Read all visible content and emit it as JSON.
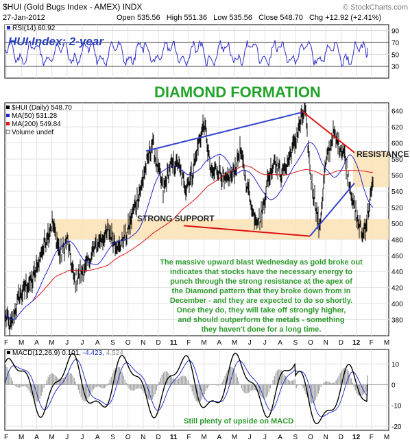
{
  "header": {
    "symbol_line": "$HUI (Gold Bugs Index - AMEX) INDX",
    "copyright": "© StockCharts.com",
    "date": "27-Jan-2012",
    "open_label": "Open",
    "open_value": "535.56",
    "high_label": "High",
    "high_value": "551.36",
    "low_label": "Low",
    "low_value": "535.56",
    "close_label": "Close",
    "close_value": "548.70",
    "chg_label": "Chg",
    "chg_value": "+12.92 (+2.41%)"
  },
  "chart_data": [
    {
      "type": "line",
      "panel": "rsi",
      "legend": "RSI(14) 60.92",
      "title": "HUI Index: 2-year",
      "ylim": [
        10,
        100
      ],
      "y_ticks": [
        30,
        50,
        70,
        90
      ],
      "reference_lines": [
        30,
        70
      ],
      "series": [
        {
          "name": "RSI(14)",
          "color": "#2b2bcc"
        }
      ],
      "last_value": 60.92
    },
    {
      "type": "line",
      "panel": "price",
      "title": "DIAMOND FORMATION",
      "legend": [
        "$HUI (Daily) 548.70",
        "MA(50) 531.28",
        "MA(200) 549.84",
        "Volume undef"
      ],
      "ylim": [
        360,
        650
      ],
      "y_ticks": [
        380,
        400,
        420,
        440,
        460,
        480,
        500,
        520,
        540,
        560,
        580,
        600,
        620,
        640
      ],
      "series": [
        {
          "name": "$HUI (Daily)",
          "color": "#000000",
          "last": 548.7
        },
        {
          "name": "MA(50)",
          "color": "#2222cc",
          "last": 531.28
        },
        {
          "name": "MA(200)",
          "color": "#dd1111",
          "last": 549.84
        }
      ],
      "support_zone": [
        480,
        505
      ],
      "resistance_zone": [
        545,
        590
      ],
      "support_label": "STRONG SUPPORT",
      "resistance_label": "RESISTANCE",
      "diamond_upper_line": [
        [
          590,
          640
        ],
        [
          638,
          640
        ]
      ],
      "annotation": [
        "The massive upward blast Wednesday as gold broke out",
        "indicates that stocks have the necessary energy to",
        "punch through the strong resistance at the apex of",
        "the Diamond pattern that they broke down from in",
        "December - and they are expected to do so shortly.",
        "Once they do, they will take off strongly higher,",
        "and should outperform the metals - something",
        "they haven't done for a long time."
      ]
    },
    {
      "type": "line",
      "panel": "macd",
      "legend_name": "MACD(12,26,9)",
      "legend_values": [
        "0.101,",
        "-4.423,",
        "4.524"
      ],
      "ylim": [
        -22,
        17
      ],
      "y_ticks": [
        -20,
        -10,
        0,
        10
      ],
      "series": [
        {
          "name": "MACD",
          "color": "#000000"
        },
        {
          "name": "Signal",
          "color": "#2233cc"
        },
        {
          "name": "Histogram",
          "color": "#aaaaaa"
        }
      ],
      "annotation": "Still plenty of upside on MACD"
    }
  ],
  "x_axis_labels": [
    "F",
    "M",
    "A",
    "M",
    "J",
    "J",
    "A",
    "S",
    "O",
    "N",
    "D",
    "11",
    "F",
    "M",
    "A",
    "M",
    "J",
    "J",
    "A",
    "S",
    "O",
    "N",
    "D",
    "12",
    "F",
    "M"
  ]
}
